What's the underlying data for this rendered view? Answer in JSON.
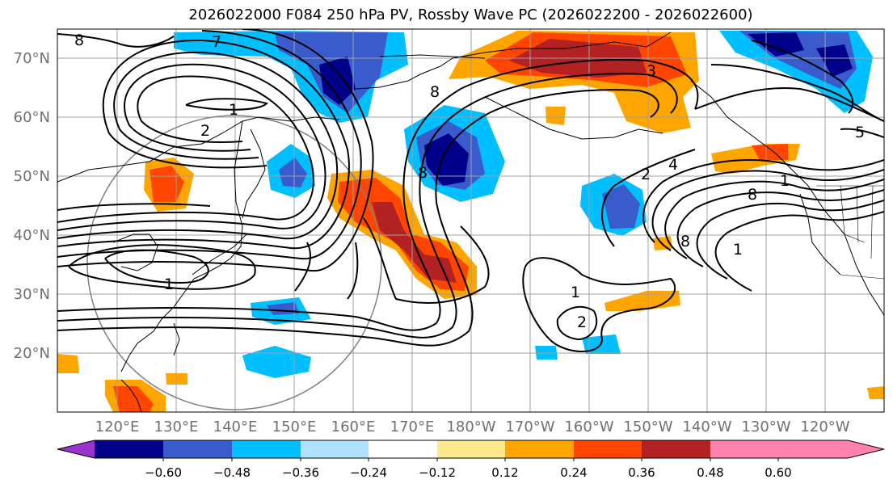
{
  "map": {
    "title": "2026022000 F084 250 hPa PV, Rossby Wave PC (2026022200 - 2026022600)",
    "lat_labels": [
      "70°N",
      "60°N",
      "50°N",
      "40°N",
      "30°N",
      "20°N"
    ],
    "lon_labels": [
      "120°E",
      "130°E",
      "140°E",
      "150°E",
      "160°E",
      "170°E",
      "180°W",
      "170°W",
      "160°W",
      "150°W",
      "140°W",
      "130°W",
      "120°W"
    ],
    "contour_labels": [
      "8",
      "7",
      "1",
      "2",
      "1",
      "8",
      "8",
      "3",
      "2",
      "4",
      "1",
      "8",
      "5",
      "1",
      "2",
      "1",
      "8"
    ],
    "colorbar": {
      "tick_labels": [
        "−0.60",
        "−0.48",
        "−0.36",
        "−0.24",
        "−0.12",
        "0.12",
        "0.24",
        "0.36",
        "0.48",
        "0.60"
      ],
      "colors": [
        "#9a32cd",
        "#00008b",
        "#3a5bcc",
        "#00bfff",
        "#b0e2ff",
        "#ffffff",
        "#fde98b",
        "#ffa500",
        "#ff4500",
        "#b22222",
        "#ff82ab"
      ]
    }
  }
}
